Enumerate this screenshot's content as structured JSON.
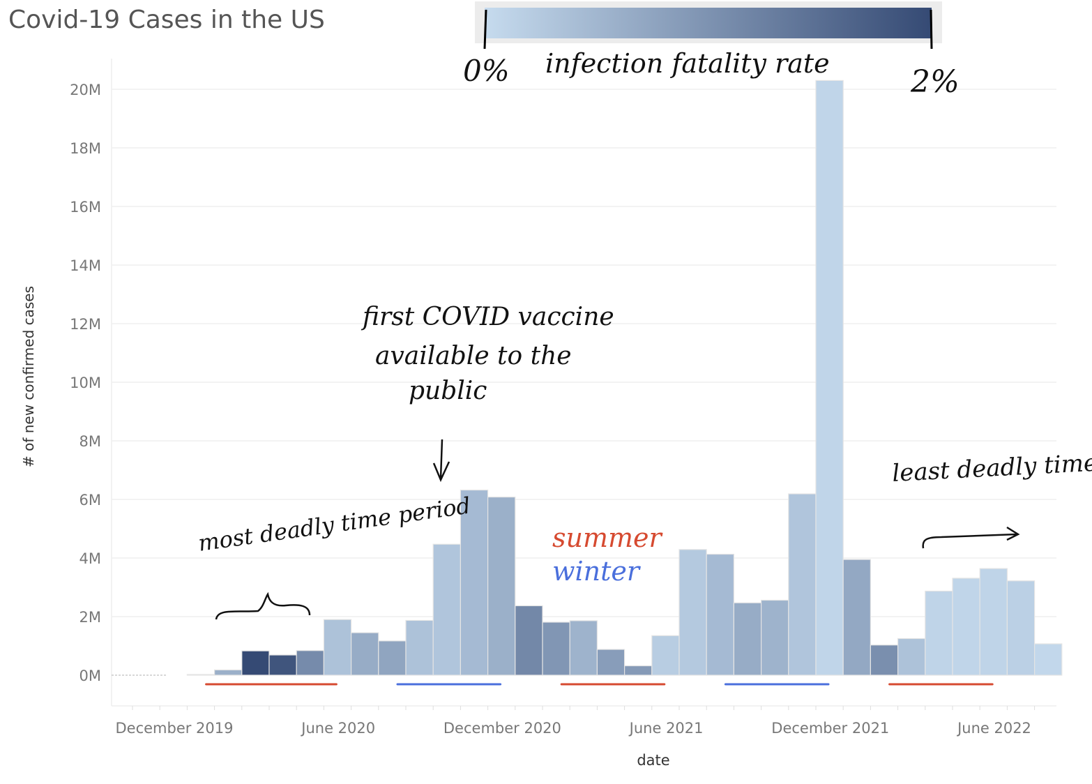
{
  "chart_data": {
    "type": "bar",
    "title": "Covid-19 Cases in the US",
    "xlabel": "date",
    "ylabel": "# of new confirmed cases",
    "ylim": [
      0,
      20000000
    ],
    "y_ticks": [
      {
        "value": 0,
        "label": "0M"
      },
      {
        "value": 2000000,
        "label": "2M"
      },
      {
        "value": 4000000,
        "label": "4M"
      },
      {
        "value": 6000000,
        "label": "6M"
      },
      {
        "value": 8000000,
        "label": "8M"
      },
      {
        "value": 10000000,
        "label": "10M"
      },
      {
        "value": 12000000,
        "label": "12M"
      },
      {
        "value": 14000000,
        "label": "14M"
      },
      {
        "value": 16000000,
        "label": "16M"
      },
      {
        "value": 18000000,
        "label": "18M"
      },
      {
        "value": 20000000,
        "label": "20M"
      }
    ],
    "x_ticks": [
      {
        "date": "2019-12",
        "label": "December 2019"
      },
      {
        "date": "2020-06",
        "label": "June 2020"
      },
      {
        "date": "2020-12",
        "label": "December 2020"
      },
      {
        "date": "2021-06",
        "label": "June 2021"
      },
      {
        "date": "2021-12",
        "label": "December 2021"
      },
      {
        "date": "2022-06",
        "label": "June 2022"
      }
    ],
    "x_range": [
      "2019-11",
      "2022-11"
    ],
    "grid": true,
    "legend": {
      "type": "color-gradient",
      "position": "top-center",
      "label": "infection fatality rate",
      "min_label": "0%",
      "max_label": "2%",
      "color_min": "#c6dbee",
      "color_max": "#354a74"
    },
    "bars": [
      {
        "date": "2020-02",
        "value": 10000,
        "ifr": 0.0
      },
      {
        "date": "2020-03",
        "value": 180000,
        "ifr": 0.6
      },
      {
        "date": "2020-04",
        "value": 830000,
        "ifr": 2.0
      },
      {
        "date": "2020-05",
        "value": 690000,
        "ifr": 1.85
      },
      {
        "date": "2020-06",
        "value": 840000,
        "ifr": 1.1
      },
      {
        "date": "2020-07",
        "value": 1900000,
        "ifr": 0.35
      },
      {
        "date": "2020-08",
        "value": 1450000,
        "ifr": 0.65
      },
      {
        "date": "2020-09",
        "value": 1170000,
        "ifr": 0.75
      },
      {
        "date": "2020-10",
        "value": 1870000,
        "ifr": 0.35
      },
      {
        "date": "2020-11",
        "value": 4470000,
        "ifr": 0.3
      },
      {
        "date": "2020-12",
        "value": 6320000,
        "ifr": 0.45
      },
      {
        "date": "2021-01",
        "value": 6080000,
        "ifr": 0.6
      },
      {
        "date": "2021-02",
        "value": 2370000,
        "ifr": 1.15
      },
      {
        "date": "2021-03",
        "value": 1810000,
        "ifr": 0.95
      },
      {
        "date": "2021-04",
        "value": 1860000,
        "ifr": 0.55
      },
      {
        "date": "2021-05",
        "value": 880000,
        "ifr": 0.85
      },
      {
        "date": "2021-06",
        "value": 320000,
        "ifr": 0.9
      },
      {
        "date": "2021-07",
        "value": 1350000,
        "ifr": 0.2
      },
      {
        "date": "2021-08",
        "value": 4290000,
        "ifr": 0.25
      },
      {
        "date": "2021-09",
        "value": 4130000,
        "ifr": 0.45
      },
      {
        "date": "2021-10",
        "value": 2470000,
        "ifr": 0.65
      },
      {
        "date": "2021-11",
        "value": 2560000,
        "ifr": 0.55
      },
      {
        "date": "2021-12",
        "value": 6190000,
        "ifr": 0.3
      },
      {
        "date": "2022-01",
        "value": 20300000,
        "ifr": 0.08
      },
      {
        "date": "2022-02",
        "value": 3950000,
        "ifr": 0.7
      },
      {
        "date": "2022-03",
        "value": 1030000,
        "ifr": 1.05
      },
      {
        "date": "2022-04",
        "value": 1250000,
        "ifr": 0.35
      },
      {
        "date": "2022-05",
        "value": 2870000,
        "ifr": 0.1
      },
      {
        "date": "2022-06",
        "value": 3310000,
        "ifr": 0.08
      },
      {
        "date": "2022-07",
        "value": 3640000,
        "ifr": 0.1
      },
      {
        "date": "2022-08",
        "value": 3220000,
        "ifr": 0.15
      },
      {
        "date": "2022-09",
        "value": 1070000,
        "ifr": 0.05
      }
    ],
    "season_markers": [
      {
        "season": "summer",
        "start": "2020-03",
        "end": "2020-07"
      },
      {
        "season": "winter",
        "start": "2020-10",
        "end": "2021-01"
      },
      {
        "season": "summer",
        "start": "2021-04",
        "end": "2021-07"
      },
      {
        "season": "winter",
        "start": "2021-10",
        "end": "2022-01"
      },
      {
        "season": "summer",
        "start": "2022-04",
        "end": "2022-07"
      }
    ],
    "season_colors": {
      "summer": "#d64a30",
      "winter": "#4a6fdc"
    },
    "annotations": {
      "most_deadly": "most deadly time period",
      "vaccine": [
        "first COVID vaccine",
        "available to the",
        "public"
      ],
      "least_deadly": "least deadly time period",
      "legend_summer": "summer",
      "legend_winter": "winter"
    }
  }
}
